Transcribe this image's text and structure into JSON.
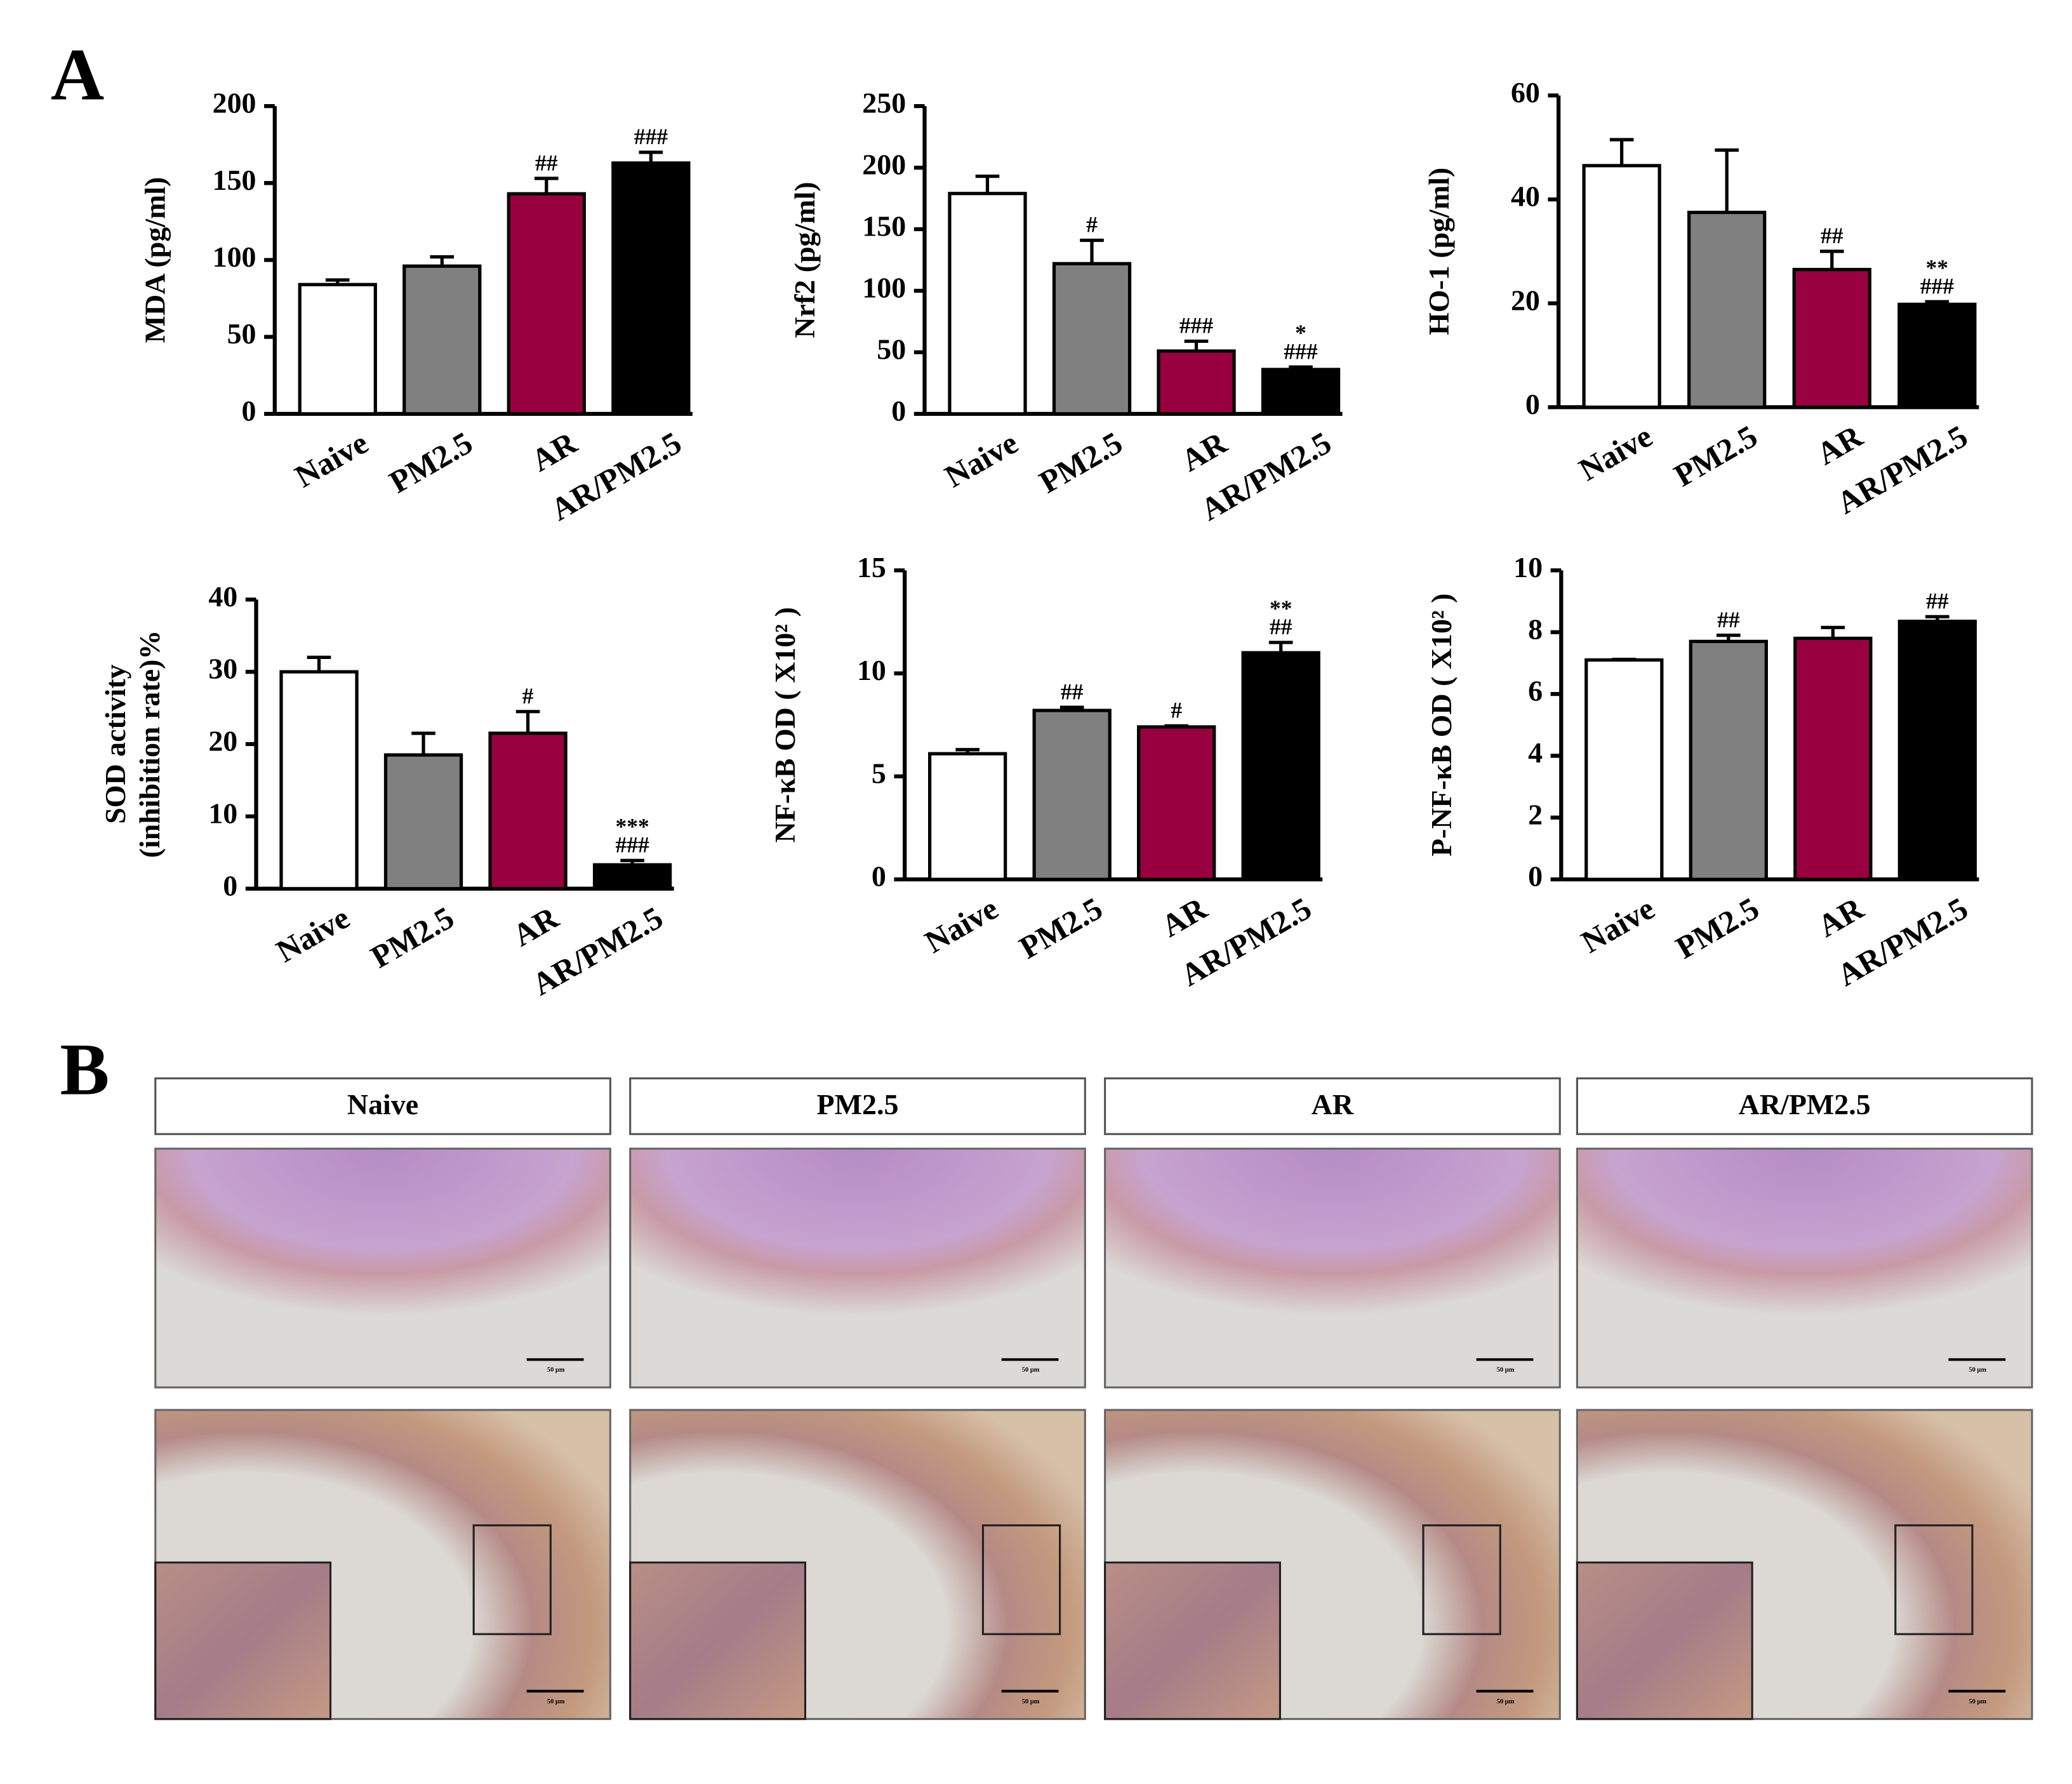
{
  "panel_labels": [
    "A",
    "B"
  ],
  "chart_data": [
    {
      "type": "bar",
      "y_label": [
        "MDA (pg/ml)"
      ],
      "categories": [
        "Naive",
        "PM2.5",
        "AR",
        "AR/PM2.5"
      ],
      "values": [
        84,
        96,
        143,
        163
      ],
      "errors": [
        3,
        6,
        10,
        7
      ],
      "annotations": [
        null,
        null,
        [
          "##"
        ],
        [
          "###"
        ]
      ],
      "colors": [
        "#ffffff",
        "#808080",
        "#990040",
        "#000000"
      ],
      "ylim": [
        0,
        200
      ],
      "yticks": [
        0,
        50,
        100,
        150,
        200
      ]
    },
    {
      "type": "bar",
      "y_label": [
        "Nrf2 (pg/ml)"
      ],
      "categories": [
        "Naive",
        "PM2.5",
        "AR",
        "AR/PM2.5"
      ],
      "values": [
        179,
        122,
        51,
        36
      ],
      "errors": [
        14,
        19,
        8,
        2
      ],
      "annotations": [
        null,
        [
          "#"
        ],
        [
          "###"
        ],
        [
          "*",
          "###"
        ]
      ],
      "colors": [
        "#ffffff",
        "#808080",
        "#990040",
        "#000000"
      ],
      "ylim": [
        0,
        250
      ],
      "yticks": [
        0,
        50,
        100,
        150,
        200,
        250
      ]
    },
    {
      "type": "bar",
      "y_label": [
        "HO-1 (pg/ml)"
      ],
      "categories": [
        "Naive",
        "PM2.5",
        "AR",
        "AR/PM2.5"
      ],
      "values": [
        46.5,
        37.5,
        26.5,
        19.8
      ],
      "errors": [
        5,
        12,
        3.5,
        0.5
      ],
      "annotations": [
        null,
        null,
        [
          "##"
        ],
        [
          "**",
          "###"
        ]
      ],
      "colors": [
        "#ffffff",
        "#808080",
        "#990040",
        "#000000"
      ],
      "ylim": [
        0,
        60
      ],
      "yticks": [
        0,
        20,
        40,
        60
      ]
    },
    {
      "type": "bar",
      "y_label": [
        "SOD activity",
        "(inhibition rate)%"
      ],
      "categories": [
        "Naive",
        "PM2.5",
        "AR",
        "AR/PM2.5"
      ],
      "values": [
        30,
        18.5,
        21.5,
        3.3
      ],
      "errors": [
        2,
        3,
        3,
        0.6
      ],
      "annotations": [
        null,
        null,
        [
          "#"
        ],
        [
          "***",
          "###"
        ]
      ],
      "colors": [
        "#ffffff",
        "#808080",
        "#990040",
        "#000000"
      ],
      "ylim": [
        0,
        40
      ],
      "yticks": [
        0,
        10,
        20,
        30,
        40
      ]
    },
    {
      "type": "bar",
      "y_label": [
        "NF-κB OD ( X10² )"
      ],
      "categories": [
        "Naive",
        "PM2.5",
        "AR",
        "AR/PM2.5"
      ],
      "values": [
        6.1,
        8.2,
        7.4,
        11
      ],
      "errors": [
        0.2,
        0.15,
        0.05,
        0.5
      ],
      "annotations": [
        null,
        [
          "##"
        ],
        [
          "#"
        ],
        [
          "**",
          "##"
        ]
      ],
      "colors": [
        "#ffffff",
        "#808080",
        "#990040",
        "#000000"
      ],
      "ylim": [
        0,
        15
      ],
      "yticks": [
        0,
        5,
        10,
        15
      ]
    },
    {
      "type": "bar",
      "y_label": [
        "P-NF-κB OD ( X10² )"
      ],
      "categories": [
        "Naive",
        "PM2.5",
        "AR",
        "AR/PM2.5"
      ],
      "values": [
        7.1,
        7.7,
        7.8,
        8.35
      ],
      "errors": [
        0.02,
        0.2,
        0.35,
        0.15
      ],
      "annotations": [
        null,
        [
          "##"
        ],
        null,
        [
          "##"
        ]
      ],
      "colors": [
        "#ffffff",
        "#808080",
        "#990040",
        "#000000"
      ],
      "ylim": [
        0,
        10
      ],
      "yticks": [
        0,
        2,
        4,
        6,
        8,
        10
      ]
    }
  ],
  "histology": {
    "groups": [
      "Naive",
      "PM2.5",
      "AR",
      "AR/PM2.5"
    ],
    "scale_bar": "50 μm"
  }
}
